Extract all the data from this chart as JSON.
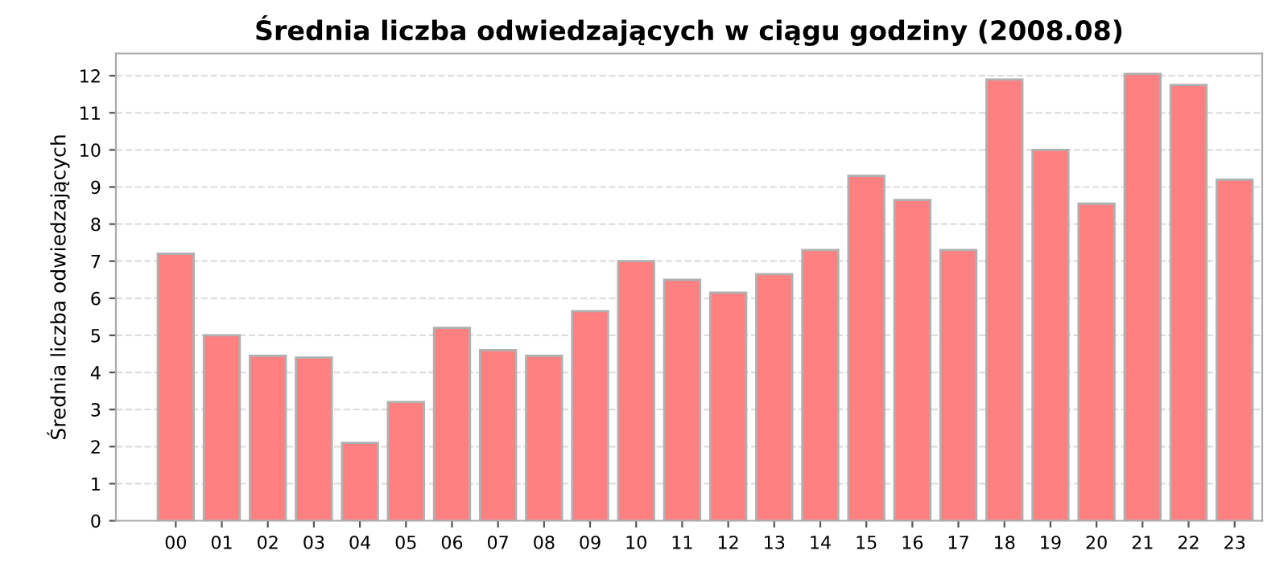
{
  "chart_data": {
    "type": "bar",
    "title": "Średnia liczba odwiedzających w ciągu godziny (2008.08)",
    "ylabel": "Średnia liczba odwiedzających",
    "categories": [
      "00",
      "01",
      "02",
      "03",
      "04",
      "05",
      "06",
      "07",
      "08",
      "09",
      "10",
      "11",
      "12",
      "13",
      "14",
      "15",
      "16",
      "17",
      "18",
      "19",
      "20",
      "21",
      "22",
      "23"
    ],
    "values": [
      7.2,
      5.0,
      4.45,
      4.4,
      2.1,
      3.2,
      5.2,
      4.6,
      4.45,
      5.65,
      7.0,
      6.5,
      6.15,
      6.65,
      7.3,
      9.3,
      8.65,
      7.3,
      11.9,
      10.0,
      8.55,
      12.05,
      11.75,
      9.2
    ],
    "color": "#ff8080",
    "ylim": [
      0,
      12.6
    ],
    "yticks": [
      0,
      1,
      2,
      3,
      4,
      5,
      6,
      7,
      8,
      9,
      10,
      11,
      12
    ],
    "grid": "y"
  }
}
